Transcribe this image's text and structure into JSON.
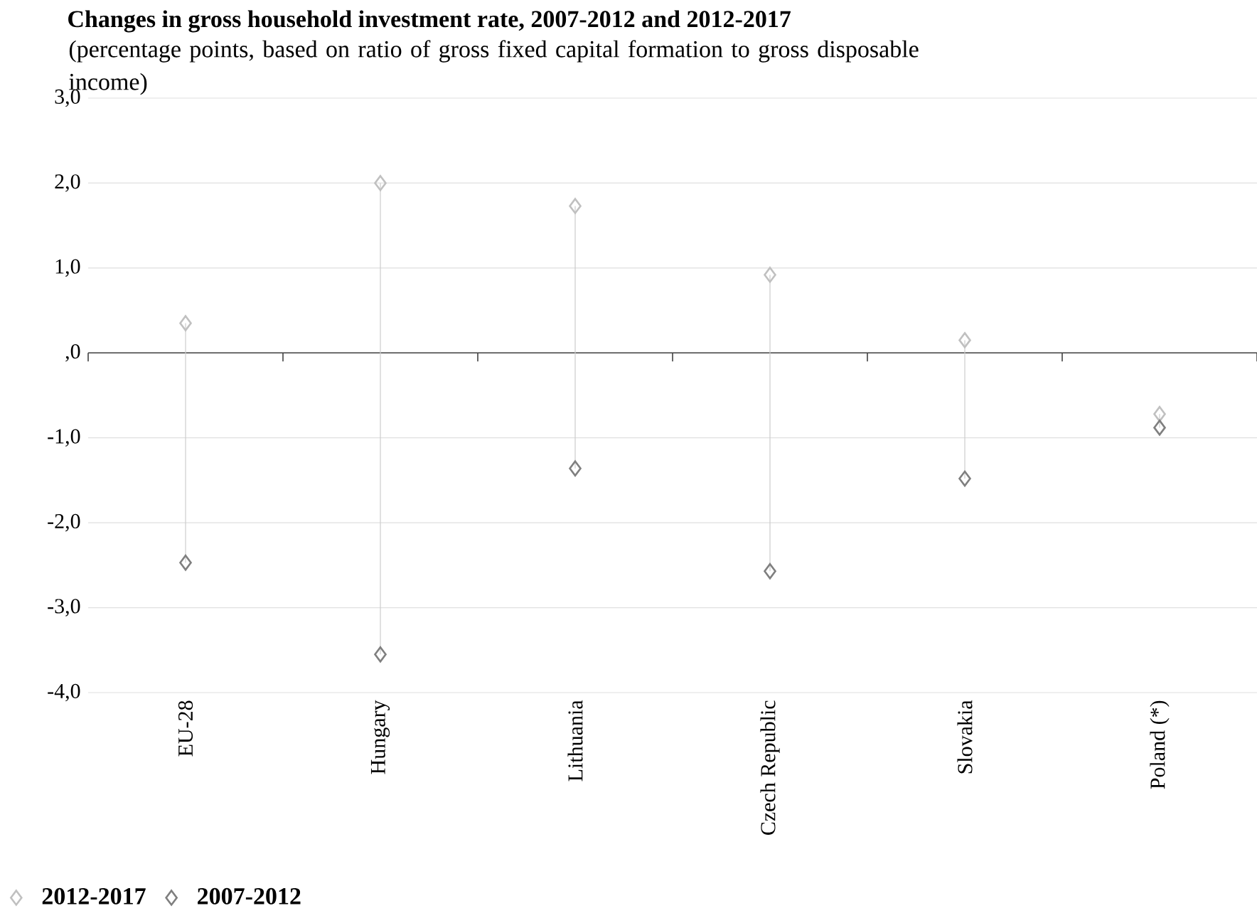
{
  "chart_data": {
    "type": "scatter",
    "title": "Changes in gross household investment rate, 2007-2012 and 2012-2017",
    "subtitle": "(percentage points, based on ratio of gross fixed capital formation to gross disposable income)",
    "categories": [
      "EU-28",
      "Hungary",
      "Lithuania",
      "Czech Republic",
      "Slovakia",
      "Poland (*)"
    ],
    "series": [
      {
        "name": "2012-2017",
        "color": "#c0c0c0",
        "values": [
          0.35,
          2.0,
          1.73,
          0.92,
          0.15,
          -0.72
        ]
      },
      {
        "name": "2007-2012",
        "color": "#7f7f7f",
        "values": [
          -2.47,
          -3.55,
          -1.36,
          -2.57,
          -1.48,
          -0.88
        ]
      }
    ],
    "ylim": [
      -4,
      3
    ],
    "yticks": [
      {
        "value": -4,
        "label": "-4,0"
      },
      {
        "value": -3,
        "label": "-3,0"
      },
      {
        "value": -2,
        "label": "-2,0"
      },
      {
        "value": -1,
        "label": "-1,0"
      },
      {
        "value": 0,
        "label": ",0"
      },
      {
        "value": 1,
        "label": "1,0"
      },
      {
        "value": 2,
        "label": "2,0"
      },
      {
        "value": 3,
        "label": "3,0"
      }
    ],
    "ref_lines": [
      {
        "axis": "y",
        "value": 0,
        "color": "#404040"
      }
    ],
    "grid": "y",
    "legend": "bottom left",
    "marker": "diamond"
  }
}
